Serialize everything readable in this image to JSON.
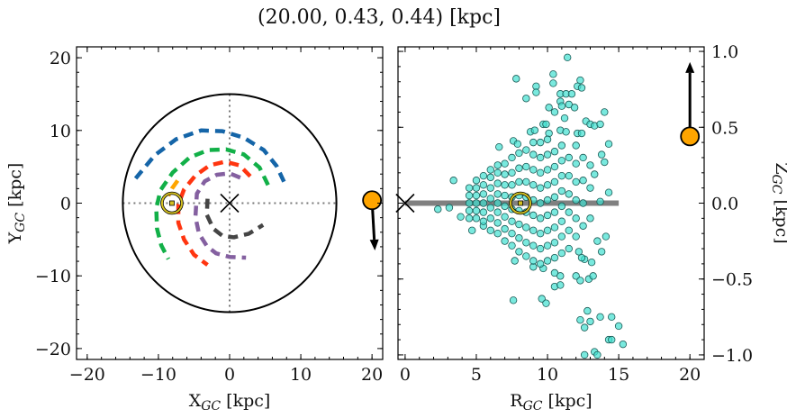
{
  "chart_data": [
    {
      "type": "line",
      "title": "(20.00, 0.43, 0.44) [kpc]",
      "xlabel": {
        "main": "X",
        "sub": "GC",
        "unit": " [kpc]"
      },
      "ylabel": {
        "main": "Y",
        "sub": "GC",
        "unit": " [kpc]"
      },
      "xlim": [
        -21.5,
        21.5
      ],
      "ylim": [
        -21.5,
        21.5
      ],
      "xticks": [
        "−20",
        "−10",
        "0",
        "10",
        "20"
      ],
      "xtick_values": [
        -20,
        -10,
        0,
        10,
        20
      ],
      "yticks": [
        "−20",
        "−10",
        "0",
        "10",
        "20"
      ],
      "ytick_values": [
        -20,
        -10,
        0,
        10,
        20
      ],
      "grid": false,
      "disk_radius": 15,
      "center_marker": [
        0,
        0
      ],
      "sun": [
        -8.1,
        0
      ],
      "object": {
        "point": [
          20,
          0.4
        ],
        "arrow_to": [
          20.4,
          -6.5
        ],
        "color": "#FFA500"
      },
      "arcs": [
        {
          "color": "#1565A8",
          "points": [
            [
              -13.2,
              3.4
            ],
            [
              -10.5,
              6.6
            ],
            [
              -7.5,
              8.8
            ],
            [
              -4,
              10
            ],
            [
              -1,
              9.9
            ],
            [
              2,
              9
            ],
            [
              4.8,
              7.3
            ],
            [
              6.6,
              5.1
            ],
            [
              7.8,
              2.6
            ]
          ]
        },
        {
          "color": "#12B048",
          "points": [
            [
              5.4,
              2.5
            ],
            [
              4.2,
              4.9
            ],
            [
              2,
              6.7
            ],
            [
              -0.5,
              7.4
            ],
            [
              -3,
              7.3
            ],
            [
              -5.6,
              6.3
            ],
            [
              -8,
              4.2
            ],
            [
              -9.7,
              1.8
            ],
            [
              -10.3,
              -0.7
            ],
            [
              -10.2,
              -3.5
            ],
            [
              -9.6,
              -5.8
            ],
            [
              -8.6,
              -7.7
            ]
          ]
        },
        {
          "color": "#FF3510",
          "points": [
            [
              2.9,
              3.7
            ],
            [
              1.4,
              5.2
            ],
            [
              -0.6,
              5.7
            ],
            [
              -2.8,
              5.2
            ],
            [
              -4.8,
              3.8
            ],
            [
              -6.4,
              1.9
            ],
            [
              -7.2,
              -0.2
            ],
            [
              -7.2,
              -2.7
            ],
            [
              -6.4,
              -5
            ],
            [
              -5,
              -7.1
            ],
            [
              -3.1,
              -8.5
            ]
          ]
        },
        {
          "color": "#8460A0",
          "points": [
            [
              1.5,
              3.5
            ],
            [
              0,
              4.1
            ],
            [
              -1.8,
              3.9
            ],
            [
              -3.5,
              3
            ],
            [
              -4.6,
              1.3
            ],
            [
              -4.8,
              -1.9
            ],
            [
              -4.3,
              -4.2
            ],
            [
              -3.2,
              -5.9
            ],
            [
              -1.9,
              -6.9
            ],
            [
              0,
              -7.4
            ],
            [
              2.3,
              -7.5
            ]
          ]
        },
        {
          "color": "#454545",
          "points": [
            [
              -3.1,
              0.6
            ],
            [
              -3.2,
              -1.6
            ],
            [
              -2.3,
              -3.5
            ],
            [
              -1,
              -4.5
            ],
            [
              0.6,
              -4.7
            ],
            [
              2.7,
              -4.2
            ],
            [
              4.7,
              -3
            ]
          ]
        },
        {
          "color": "#FFA500",
          "points": [
            [
              -7.3,
              3.1
            ],
            [
              -8.1,
              2
            ],
            [
              -8.6,
              1
            ]
          ]
        }
      ]
    },
    {
      "type": "scatter",
      "xlabel": {
        "main": "R",
        "sub": "GC",
        "unit": " [kpc]"
      },
      "ylabel": {
        "main": "Z",
        "sub": "GC",
        "unit": " [kpc]"
      },
      "xlim": [
        -0.5,
        21.0
      ],
      "ylim": [
        -1.03,
        1.03
      ],
      "xticks": [
        "0",
        "5",
        "10",
        "15",
        "20"
      ],
      "xtick_values": [
        0,
        5,
        10,
        15,
        20
      ],
      "yticks": [
        "−1.0",
        "−0.5",
        "0.0",
        "0.5",
        "1.0"
      ],
      "ytick_values": [
        -1,
        -0.5,
        0,
        0.5,
        1
      ],
      "grid": false,
      "point_color": "#40E0D0",
      "center_marker": [
        0,
        0
      ],
      "disk_line": [
        [
          0,
          0
        ],
        [
          15,
          0
        ]
      ],
      "sun": [
        8.1,
        0
      ],
      "object": {
        "point": [
          20,
          0.44
        ],
        "arrow_to": [
          20,
          0.93
        ],
        "color": "#FFA500"
      },
      "points": [
        [
          11.4,
          0.96
        ],
        [
          7.8,
          0.82
        ],
        [
          10.4,
          0.85
        ],
        [
          10.4,
          0.79
        ],
        [
          12.3,
          0.81
        ],
        [
          12.1,
          0.77
        ],
        [
          12.4,
          0.76
        ],
        [
          9.2,
          0.77
        ],
        [
          9.2,
          0.73
        ],
        [
          8.5,
          0.69
        ],
        [
          10.9,
          0.72
        ],
        [
          11.3,
          0.72
        ],
        [
          11.7,
          0.72
        ],
        [
          10.9,
          0.67
        ],
        [
          11.0,
          0.64
        ],
        [
          11.5,
          0.65
        ],
        [
          11.9,
          0.63
        ],
        [
          10.1,
          0.63
        ],
        [
          10.5,
          0.6
        ],
        [
          11.2,
          0.56
        ],
        [
          14.0,
          0.6
        ],
        [
          12.7,
          0.54
        ],
        [
          13.0,
          0.52
        ],
        [
          13.3,
          0.51
        ],
        [
          13.7,
          0.52
        ],
        [
          9.7,
          0.52
        ],
        [
          9.9,
          0.52
        ],
        [
          8.8,
          0.47
        ],
        [
          9.1,
          0.48
        ],
        [
          10.1,
          0.46
        ],
        [
          10.9,
          0.48
        ],
        [
          11.3,
          0.47
        ],
        [
          12.1,
          0.46
        ],
        [
          12.4,
          0.46
        ],
        [
          6.6,
          0.37
        ],
        [
          7.6,
          0.41
        ],
        [
          7.9,
          0.39
        ],
        [
          14.3,
          0.39
        ],
        [
          3.4,
          0.15
        ],
        [
          2.3,
          -0.04
        ],
        [
          3.1,
          -0.03
        ],
        [
          3.9,
          -0.09
        ],
        [
          4.7,
          -0.18
        ],
        [
          5.5,
          -0.15
        ],
        [
          14.3,
          0.07
        ],
        [
          13.7,
          0.01
        ],
        [
          14.0,
          0.27
        ],
        [
          13.8,
          0.32
        ],
        [
          13.3,
          0.19
        ],
        [
          14.1,
          -0.22
        ],
        [
          13.8,
          -0.32
        ],
        [
          13.5,
          -0.25
        ],
        [
          12.6,
          -0.37
        ],
        [
          13.1,
          -0.39
        ],
        [
          12.0,
          -0.48
        ],
        [
          12.3,
          -0.51
        ],
        [
          12.9,
          -0.5
        ],
        [
          13.2,
          -0.48
        ],
        [
          7.6,
          -0.64
        ],
        [
          9.6,
          -0.63
        ],
        [
          9.9,
          -0.66
        ],
        [
          7.7,
          -0.38
        ],
        [
          9.0,
          -0.42
        ],
        [
          9.7,
          -0.43
        ],
        [
          10.5,
          -0.46
        ],
        [
          10.9,
          -0.48
        ],
        [
          10.5,
          -0.55
        ],
        [
          10.9,
          -0.54
        ],
        [
          12.8,
          -0.71
        ],
        [
          12.3,
          -0.77
        ],
        [
          12.6,
          -0.82
        ],
        [
          13.0,
          -0.78
        ],
        [
          13.7,
          -0.75
        ],
        [
          14.5,
          -0.75
        ],
        [
          15.0,
          -0.81
        ],
        [
          14.3,
          -0.9
        ],
        [
          14.5,
          -0.9
        ],
        [
          15.3,
          -0.93
        ],
        [
          12.6,
          -1.0
        ],
        [
          13.3,
          -0.98
        ],
        [
          13.5,
          -1.0
        ],
        [
          12.4,
          -0.36
        ],
        [
          12.2,
          -0.32
        ],
        [
          4.5,
          -0.05
        ],
        [
          4.5,
          0
        ],
        [
          4.5,
          0.05
        ],
        [
          4.5,
          0.1
        ],
        [
          4.5,
          -0.1
        ],
        [
          5,
          -0.1
        ],
        [
          5,
          -0.05
        ],
        [
          5,
          0
        ],
        [
          5,
          0.05
        ],
        [
          5,
          0.1
        ],
        [
          5,
          0.15
        ],
        [
          5.5,
          -0.12
        ],
        [
          5.5,
          -0.06
        ],
        [
          5.5,
          0
        ],
        [
          5.5,
          0.06
        ],
        [
          5.5,
          0.12
        ],
        [
          5.5,
          0.18
        ],
        [
          6,
          -0.18
        ],
        [
          6,
          -0.1
        ],
        [
          6,
          -0.03
        ],
        [
          6,
          0.03
        ],
        [
          6,
          0.1
        ],
        [
          6,
          0.17
        ],
        [
          6,
          0.22
        ],
        [
          6.5,
          -0.2
        ],
        [
          6.5,
          -0.13
        ],
        [
          6.5,
          -0.06
        ],
        [
          6.5,
          0
        ],
        [
          6.5,
          0.06
        ],
        [
          6.5,
          0.13
        ],
        [
          6.5,
          0.2
        ],
        [
          6.5,
          0.25
        ],
        [
          7,
          -0.25
        ],
        [
          7,
          -0.17
        ],
        [
          7,
          -0.09
        ],
        [
          7,
          -0.02
        ],
        [
          7,
          0.05
        ],
        [
          7,
          0.12
        ],
        [
          7,
          0.19
        ],
        [
          7,
          0.26
        ],
        [
          7.5,
          -0.28
        ],
        [
          7.5,
          -0.2
        ],
        [
          7.5,
          -0.12
        ],
        [
          7.5,
          -0.04
        ],
        [
          7.5,
          0.04
        ],
        [
          7.5,
          0.12
        ],
        [
          7.5,
          0.2
        ],
        [
          7.5,
          0.3
        ],
        [
          8,
          -0.32
        ],
        [
          8,
          -0.23
        ],
        [
          8,
          -0.14
        ],
        [
          8,
          -0.05
        ],
        [
          8,
          0.05
        ],
        [
          8,
          0.14
        ],
        [
          8,
          0.23
        ],
        [
          8,
          0.33
        ],
        [
          8.5,
          -0.35
        ],
        [
          8.5,
          -0.26
        ],
        [
          8.5,
          -0.16
        ],
        [
          8.5,
          -0.06
        ],
        [
          8.5,
          0.04
        ],
        [
          8.5,
          0.14
        ],
        [
          8.5,
          0.24
        ],
        [
          8.5,
          0.35
        ],
        [
          9,
          -0.38
        ],
        [
          9,
          -0.28
        ],
        [
          9,
          -0.18
        ],
        [
          9,
          -0.08
        ],
        [
          9,
          0.02
        ],
        [
          9,
          0.12
        ],
        [
          9,
          0.22
        ],
        [
          9,
          0.32
        ],
        [
          9,
          0.4
        ],
        [
          9.5,
          -0.4
        ],
        [
          9.5,
          -0.3
        ],
        [
          9.5,
          -0.2
        ],
        [
          9.5,
          -0.1
        ],
        [
          9.5,
          0
        ],
        [
          9.5,
          0.1
        ],
        [
          9.5,
          0.2
        ],
        [
          9.5,
          0.3
        ],
        [
          9.5,
          0.4
        ],
        [
          10,
          -0.38
        ],
        [
          10,
          -0.28
        ],
        [
          10,
          -0.18
        ],
        [
          10,
          -0.08
        ],
        [
          10,
          0.02
        ],
        [
          10,
          0.12
        ],
        [
          10,
          0.22
        ],
        [
          10,
          0.32
        ],
        [
          10,
          0.42
        ],
        [
          10.5,
          -0.36
        ],
        [
          10.5,
          -0.26
        ],
        [
          10.5,
          -0.16
        ],
        [
          10.5,
          -0.06
        ],
        [
          10.5,
          0.04
        ],
        [
          10.5,
          0.14
        ],
        [
          10.5,
          0.24
        ],
        [
          10.5,
          0.34
        ],
        [
          11,
          -0.33
        ],
        [
          11,
          -0.22
        ],
        [
          11,
          -0.12
        ],
        [
          11,
          -0.02
        ],
        [
          11,
          0.08
        ],
        [
          11,
          0.18
        ],
        [
          11,
          0.28
        ],
        [
          11,
          0.38
        ],
        [
          11.5,
          -0.3
        ],
        [
          11.5,
          -0.18
        ],
        [
          11.5,
          -0.06
        ],
        [
          11.5,
          0.06
        ],
        [
          11.5,
          0.18
        ],
        [
          11.5,
          0.3
        ],
        [
          12,
          -0.22
        ],
        [
          12,
          -0.1
        ],
        [
          12,
          0.02
        ],
        [
          12,
          0.14
        ],
        [
          12,
          0.26
        ],
        [
          12,
          0.38
        ],
        [
          12.5,
          -0.15
        ],
        [
          12.5,
          0
        ],
        [
          12.5,
          0.15
        ],
        [
          12.5,
          0.3
        ],
        [
          13,
          -0.1
        ],
        [
          13,
          0.1
        ],
        [
          13,
          0.25
        ]
      ]
    }
  ]
}
